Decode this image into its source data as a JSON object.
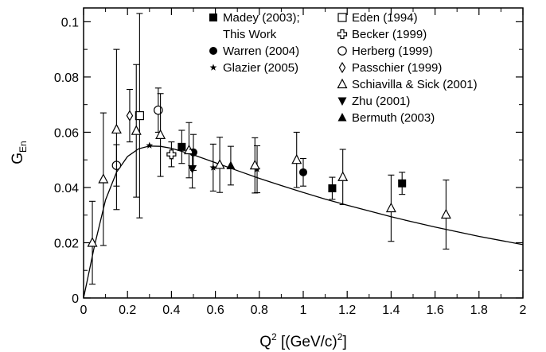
{
  "chart_data": {
    "type": "scatter",
    "xlabel": "Q",
    "xlabel_sup": "2",
    "xlabel_unit": " [(GeV/c)",
    "xlabel_unit_sup": "2",
    "xlabel_unit_end": "]",
    "ylabel": "G",
    "ylabel_sub": "En",
    "xlim": [
      0,
      2
    ],
    "ylim": [
      0,
      0.105
    ],
    "xticks": [
      "0",
      "0.2",
      "0.4",
      "0.6",
      "0.8",
      "1",
      "1.2",
      "1.4",
      "1.6",
      "1.8",
      "2"
    ],
    "xtick_values": [
      0,
      0.2,
      0.4,
      0.6,
      0.8,
      1,
      1.2,
      1.4,
      1.6,
      1.8,
      2
    ],
    "yticks": [
      "0",
      "0.02",
      "0.04",
      "0.06",
      "0.08",
      "0.1"
    ],
    "ytick_values": [
      0,
      0.02,
      0.04,
      0.06,
      0.08,
      0.1
    ],
    "grid": false,
    "legend_placement": "top-right",
    "legend": [
      {
        "label": "Madey (2003);",
        "label2": "This Work",
        "marker": "square-filled"
      },
      {
        "label": "Warren (2004)",
        "marker": "circle-filled"
      },
      {
        "label": "Glazier (2005)",
        "marker": "star"
      },
      {
        "label": "Eden (1994)",
        "marker": "square-open"
      },
      {
        "label": "Becker (1999)",
        "marker": "cross-open"
      },
      {
        "label": "Herberg (1999)",
        "marker": "circle-open"
      },
      {
        "label": "Passchier (1999)",
        "marker": "diamond-open"
      },
      {
        "label": "Schiavilla & Sick (2001)",
        "marker": "triangle-open"
      },
      {
        "label": "Zhu (2001)",
        "marker": "triangle-down-filled"
      },
      {
        "label": "Bermuth (2003)",
        "marker": "triangle-filled"
      }
    ],
    "series": [
      {
        "name": "Madey (2003); This Work",
        "marker": "square-filled",
        "points": [
          {
            "x": 0.447,
            "y": 0.0547,
            "err": 0.006
          },
          {
            "x": 1.132,
            "y": 0.0397,
            "err": 0.004
          },
          {
            "x": 1.45,
            "y": 0.0415,
            "err": 0.004
          }
        ]
      },
      {
        "name": "Warren (2004)",
        "marker": "circle-filled",
        "points": [
          {
            "x": 0.5,
            "y": 0.0527,
            "err": 0.0065
          },
          {
            "x": 1.0,
            "y": 0.0455,
            "err": 0.005
          }
        ]
      },
      {
        "name": "Glazier (2005)",
        "marker": "star",
        "points": [
          {
            "x": 0.3,
            "y": 0.0552,
            "err": 0.0
          },
          {
            "x": 0.59,
            "y": 0.0472,
            "err": 0.0085
          },
          {
            "x": 0.79,
            "y": 0.0466,
            "err": 0.0085
          }
        ]
      },
      {
        "name": "Eden (1994)",
        "marker": "square-open",
        "points": [
          {
            "x": 0.255,
            "y": 0.066,
            "err": 0.037
          }
        ]
      },
      {
        "name": "Becker (1999)",
        "marker": "cross-open",
        "points": [
          {
            "x": 0.4,
            "y": 0.052,
            "err": 0.0045
          }
        ]
      },
      {
        "name": "Herberg (1999)",
        "marker": "circle-open",
        "points": [
          {
            "x": 0.15,
            "y": 0.048,
            "err": 0.0075
          },
          {
            "x": 0.34,
            "y": 0.068,
            "err": 0.008
          }
        ]
      },
      {
        "name": "Passchier (1999)",
        "marker": "diamond-open",
        "points": [
          {
            "x": 0.21,
            "y": 0.066,
            "err": 0.0095
          }
        ]
      },
      {
        "name": "Schiavilla & Sick (2001)",
        "marker": "triangle-open",
        "points": [
          {
            "x": 0.04,
            "y": 0.02,
            "err": 0.015
          },
          {
            "x": 0.09,
            "y": 0.043,
            "err": 0.024
          },
          {
            "x": 0.15,
            "y": 0.061,
            "err": 0.029
          },
          {
            "x": 0.24,
            "y": 0.0605,
            "err": 0.024
          },
          {
            "x": 0.35,
            "y": 0.059,
            "err": 0.015
          },
          {
            "x": 0.48,
            "y": 0.0535,
            "err": 0.01
          },
          {
            "x": 0.62,
            "y": 0.0482,
            "err": 0.01
          },
          {
            "x": 0.78,
            "y": 0.048,
            "err": 0.01
          },
          {
            "x": 0.97,
            "y": 0.05,
            "err": 0.01
          },
          {
            "x": 1.18,
            "y": 0.0438,
            "err": 0.01
          },
          {
            "x": 1.4,
            "y": 0.0325,
            "err": 0.012
          },
          {
            "x": 1.65,
            "y": 0.0302,
            "err": 0.0125
          }
        ]
      },
      {
        "name": "Zhu (2001)",
        "marker": "triangle-down-filled",
        "points": [
          {
            "x": 0.495,
            "y": 0.0468,
            "err": 0.007
          }
        ]
      },
      {
        "name": "Bermuth (2003)",
        "marker": "triangle-filled",
        "points": [
          {
            "x": 0.67,
            "y": 0.0479,
            "err": 0.007
          }
        ]
      }
    ],
    "fit_curve": {
      "x": [
        0,
        0.02,
        0.05,
        0.1,
        0.15,
        0.2,
        0.25,
        0.3,
        0.35,
        0.4,
        0.5,
        0.6,
        0.7,
        0.8,
        0.9,
        1.0,
        1.1,
        1.2,
        1.3,
        1.4,
        1.5,
        1.6,
        1.7,
        1.8,
        1.9,
        2.0
      ],
      "y": [
        0,
        0.0075,
        0.019,
        0.0355,
        0.0455,
        0.0512,
        0.054,
        0.055,
        0.0549,
        0.0542,
        0.0518,
        0.049,
        0.0461,
        0.0433,
        0.0407,
        0.0382,
        0.0358,
        0.0336,
        0.0315,
        0.0294,
        0.0275,
        0.0257,
        0.024,
        0.0223,
        0.0208,
        0.0193
      ]
    }
  }
}
